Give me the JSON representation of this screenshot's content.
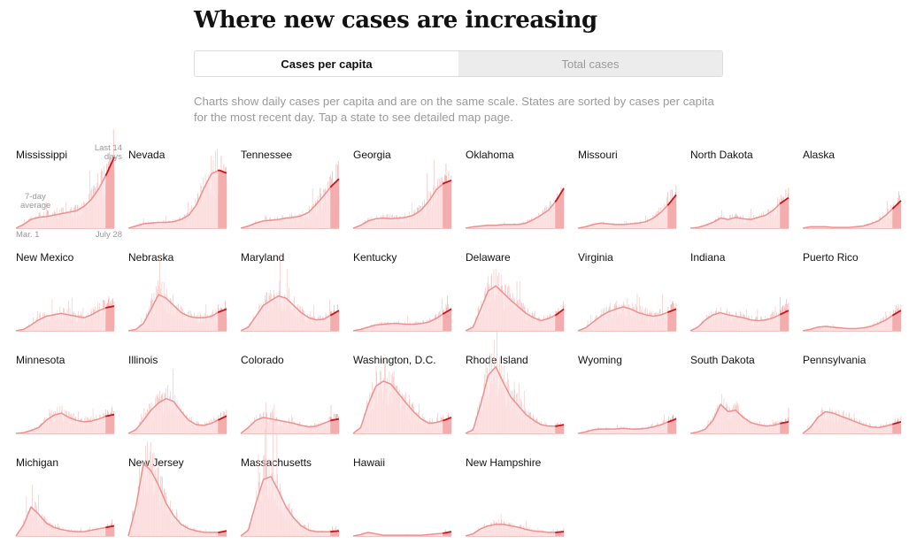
{
  "title": "Where new cases are increasing",
  "toggle": {
    "active_label": "Cases per capita",
    "inactive_label": "Total cases"
  },
  "description": "Charts show daily cases per capita and are on the same scale. States are sorted by cases per capita for the most recent day. Tap a state to see detailed map page.",
  "annotations": {
    "recent_line1": "Last 14",
    "recent_line2": "days",
    "avg_line1": "7-day",
    "avg_line2": "average",
    "start_date": "Mar. 1",
    "end_date": "July 28"
  },
  "colors": {
    "bar": "#f5bfbf",
    "area": "#fde6e6",
    "avg_line": "#ef8f8f",
    "recent_fill": "#f2a3a3",
    "recent_line": "#c4161c"
  },
  "chart_data": {
    "type": "area",
    "description": "Small multiples: 7-day average of daily new cases per capita, Mar. 1 to July 28, same scale for every state",
    "x_start": "Mar. 1",
    "x_end": "July 28",
    "highlight": "Last 14 days",
    "y_scale": "shared",
    "ylim": [
      0,
      100
    ],
    "keypoint_order": "Each state's values are equally spaced keypoints of the 7-day average from Mar. 1 to July 28, relative units (0-100 shared scale)",
    "states": [
      {
        "name": "Mississippi",
        "values": [
          0,
          5,
          12,
          15,
          16,
          18,
          20,
          22,
          24,
          30,
          40,
          55,
          75,
          98
        ]
      },
      {
        "name": "Nevada",
        "values": [
          0,
          3,
          6,
          7,
          8,
          8,
          9,
          12,
          18,
          32,
          55,
          75,
          80,
          76
        ]
      },
      {
        "name": "Tennessee",
        "values": [
          0,
          3,
          7,
          10,
          11,
          12,
          14,
          15,
          17,
          22,
          33,
          45,
          58,
          68
        ]
      },
      {
        "name": "Georgia",
        "values": [
          0,
          4,
          10,
          13,
          14,
          13,
          14,
          15,
          18,
          25,
          37,
          53,
          62,
          66
        ]
      },
      {
        "name": "Oklahoma",
        "values": [
          0,
          2,
          3,
          4,
          4,
          5,
          5,
          5,
          7,
          12,
          18,
          25,
          38,
          55
        ]
      },
      {
        "name": "Missouri",
        "values": [
          0,
          2,
          5,
          7,
          6,
          5,
          5,
          6,
          7,
          9,
          14,
          22,
          33,
          46
        ]
      },
      {
        "name": "North Dakota",
        "values": [
          0,
          1,
          4,
          8,
          14,
          12,
          15,
          13,
          12,
          15,
          18,
          25,
          35,
          42
        ]
      },
      {
        "name": "Alaska",
        "values": [
          0,
          2,
          2,
          2,
          1,
          1,
          1,
          2,
          3,
          6,
          10,
          18,
          28,
          38
        ]
      },
      {
        "name": "New Mexico",
        "values": [
          0,
          2,
          8,
          15,
          20,
          22,
          24,
          22,
          20,
          18,
          22,
          28,
          32,
          34
        ]
      },
      {
        "name": "Nebraska",
        "values": [
          0,
          2,
          10,
          30,
          50,
          45,
          35,
          25,
          20,
          18,
          18,
          20,
          26,
          30
        ]
      },
      {
        "name": "Maryland",
        "values": [
          0,
          5,
          20,
          35,
          42,
          48,
          45,
          35,
          25,
          18,
          15,
          16,
          22,
          28
        ]
      },
      {
        "name": "Kentucky",
        "values": [
          0,
          2,
          5,
          8,
          9,
          10,
          10,
          9,
          9,
          10,
          12,
          17,
          24,
          30
        ]
      },
      {
        "name": "Delaware",
        "values": [
          0,
          5,
          30,
          55,
          62,
          52,
          42,
          33,
          24,
          18,
          14,
          17,
          22,
          30
        ]
      },
      {
        "name": "Virginia",
        "values": [
          0,
          4,
          12,
          20,
          26,
          30,
          33,
          30,
          25,
          22,
          20,
          22,
          26,
          30
        ]
      },
      {
        "name": "Indiana",
        "values": [
          0,
          5,
          15,
          22,
          25,
          22,
          20,
          18,
          15,
          14,
          15,
          18,
          23,
          28
        ]
      },
      {
        "name": "Puerto Rico",
        "values": [
          0,
          2,
          5,
          6,
          5,
          4,
          3,
          3,
          4,
          6,
          10,
          15,
          22,
          28
        ]
      },
      {
        "name": "Minnesota",
        "values": [
          0,
          1,
          4,
          8,
          18,
          25,
          28,
          22,
          18,
          16,
          17,
          20,
          24,
          26
        ]
      },
      {
        "name": "Illinois",
        "values": [
          0,
          5,
          18,
          32,
          42,
          48,
          44,
          30,
          18,
          12,
          11,
          14,
          19,
          24
        ]
      },
      {
        "name": "Colorado",
        "values": [
          0,
          8,
          18,
          22,
          20,
          18,
          16,
          14,
          11,
          9,
          10,
          14,
          18,
          20
        ]
      },
      {
        "name": "Washington, D.C.",
        "values": [
          0,
          8,
          40,
          65,
          72,
          68,
          55,
          42,
          30,
          20,
          14,
          15,
          18,
          22
        ]
      },
      {
        "name": "Rhode Island",
        "values": [
          0,
          5,
          40,
          80,
          92,
          70,
          50,
          38,
          26,
          18,
          12,
          10,
          10,
          12
        ]
      },
      {
        "name": "Wyoming",
        "values": [
          0,
          2,
          5,
          6,
          6,
          6,
          7,
          6,
          6,
          7,
          9,
          12,
          16,
          20
        ]
      },
      {
        "name": "South Dakota",
        "values": [
          0,
          2,
          6,
          18,
          40,
          30,
          32,
          22,
          15,
          12,
          10,
          11,
          14,
          16
        ]
      },
      {
        "name": "Pennsylvania",
        "values": [
          0,
          8,
          22,
          30,
          28,
          24,
          20,
          16,
          12,
          9,
          8,
          10,
          13,
          16
        ]
      },
      {
        "name": "Michigan",
        "values": [
          0,
          15,
          40,
          30,
          18,
          12,
          9,
          7,
          6,
          6,
          8,
          10,
          12,
          14
        ]
      },
      {
        "name": "New Jersey",
        "values": [
          0,
          40,
          100,
          90,
          70,
          45,
          28,
          16,
          10,
          7,
          5,
          5,
          5,
          7
        ]
      },
      {
        "name": "Massachusetts",
        "values": [
          0,
          8,
          45,
          78,
          82,
          62,
          40,
          25,
          14,
          8,
          6,
          6,
          6,
          7
        ]
      },
      {
        "name": "Hawaii",
        "values": [
          0,
          2,
          5,
          3,
          1,
          1,
          1,
          1,
          1,
          1,
          2,
          3,
          4,
          6
        ]
      },
      {
        "name": "New Hampshire",
        "values": [
          0,
          3,
          10,
          14,
          16,
          16,
          14,
          12,
          9,
          7,
          6,
          5,
          5,
          6
        ]
      }
    ]
  }
}
